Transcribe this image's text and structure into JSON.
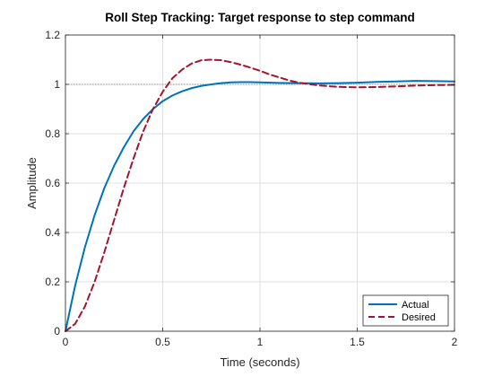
{
  "chart_data": {
    "type": "line",
    "title": "Roll Step Tracking: Target response to step command",
    "xlabel": "Time (seconds)",
    "ylabel": "Amplitude",
    "xlim": [
      0,
      2
    ],
    "ylim": [
      0,
      1.2
    ],
    "xticks": [
      0,
      0.5,
      1,
      1.5,
      2
    ],
    "xtick_labels": [
      "0",
      "0.5",
      "1",
      "1.5",
      "2"
    ],
    "yticks": [
      0,
      0.2,
      0.4,
      0.6,
      0.8,
      1,
      1.2
    ],
    "ytick_labels": [
      "0",
      "0.2",
      "0.4",
      "0.6",
      "0.8",
      "1",
      "1.2"
    ],
    "grid": true,
    "legend_position": "bottom-right",
    "reference_line": {
      "y": 1,
      "style": "dotted",
      "color": "#808080"
    },
    "series": [
      {
        "name": "Actual",
        "color": "#0072BD",
        "style": "solid",
        "x": [
          0,
          0.05,
          0.1,
          0.15,
          0.2,
          0.25,
          0.3,
          0.35,
          0.4,
          0.45,
          0.5,
          0.55,
          0.6,
          0.65,
          0.7,
          0.75,
          0.8,
          0.85,
          0.9,
          0.95,
          1.0,
          1.1,
          1.2,
          1.3,
          1.4,
          1.5,
          1.6,
          1.7,
          1.8,
          1.9,
          2.0
        ],
        "y": [
          0,
          0.185,
          0.34,
          0.47,
          0.58,
          0.67,
          0.745,
          0.81,
          0.86,
          0.9,
          0.932,
          0.955,
          0.972,
          0.985,
          0.994,
          1.0,
          1.005,
          1.008,
          1.009,
          1.009,
          1.008,
          1.006,
          1.005,
          1.004,
          1.005,
          1.007,
          1.01,
          1.012,
          1.014,
          1.013,
          1.012
        ]
      },
      {
        "name": "Desired",
        "color": "#A2142F",
        "style": "dashed",
        "x": [
          0,
          0.05,
          0.1,
          0.15,
          0.2,
          0.25,
          0.3,
          0.35,
          0.4,
          0.45,
          0.5,
          0.55,
          0.6,
          0.65,
          0.7,
          0.75,
          0.8,
          0.85,
          0.9,
          0.95,
          1.0,
          1.05,
          1.1,
          1.15,
          1.2,
          1.3,
          1.4,
          1.5,
          1.6,
          1.7,
          1.8,
          1.9,
          2.0
        ],
        "y": [
          0,
          0.03,
          0.1,
          0.2,
          0.32,
          0.45,
          0.58,
          0.7,
          0.81,
          0.9,
          0.97,
          1.025,
          1.06,
          1.085,
          1.098,
          1.1,
          1.098,
          1.09,
          1.08,
          1.068,
          1.055,
          1.04,
          1.028,
          1.016,
          1.007,
          0.996,
          0.99,
          0.988,
          0.989,
          0.992,
          0.995,
          0.997,
          0.998
        ]
      }
    ]
  }
}
